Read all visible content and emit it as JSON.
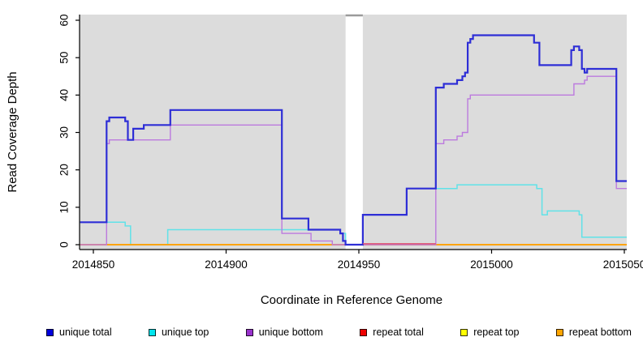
{
  "chart_data": {
    "type": "line",
    "subtype": "step-coverage",
    "title": "",
    "xlabel": "Coordinate in Reference Genome",
    "ylabel": "Read Coverage Depth",
    "xlim": [
      2014845,
      2015051
    ],
    "ylim": [
      0,
      60
    ],
    "x_ticks": [
      2014850,
      2014900,
      2014950,
      2015000,
      2015050
    ],
    "x_tick_labels": [
      "2014850",
      "2014900",
      "2014950",
      "2015000",
      "2015050"
    ],
    "y_ticks": [
      0,
      10,
      20,
      30,
      40,
      50,
      60
    ],
    "y_tick_labels": [
      "0",
      "10",
      "20",
      "30",
      "40",
      "50",
      "60"
    ],
    "grid": false,
    "panel_background": "#dcdcdc",
    "gap_region": {
      "x1": 2014945,
      "x2": 2014951.5,
      "fill": "#ffffff",
      "top_edge_color": "#9a9a9a"
    },
    "legend_position": "bottom",
    "series": [
      {
        "name": "unique total",
        "color": "#2e2ed6",
        "legend_color": "#0000dd",
        "width": 2.2,
        "points": [
          [
            2014845,
            6
          ],
          [
            2014855,
            33
          ],
          [
            2014856,
            34
          ],
          [
            2014862,
            33
          ],
          [
            2014863,
            28
          ],
          [
            2014865,
            31
          ],
          [
            2014869,
            32
          ],
          [
            2014879,
            36
          ],
          [
            2014921,
            7
          ],
          [
            2014931,
            4
          ],
          [
            2014943,
            3
          ],
          [
            2014944,
            1
          ],
          [
            2014945,
            0
          ],
          [
            2014951.5,
            8
          ],
          [
            2014968,
            15
          ],
          [
            2014979,
            42
          ],
          [
            2014982,
            43
          ],
          [
            2014987,
            44
          ],
          [
            2014989,
            45
          ],
          [
            2014990,
            46
          ],
          [
            2014991,
            54
          ],
          [
            2014992,
            55
          ],
          [
            2014993,
            56
          ],
          [
            2015016,
            54
          ],
          [
            2015018,
            48
          ],
          [
            2015030,
            52
          ],
          [
            2015031,
            53
          ],
          [
            2015033,
            52
          ],
          [
            2015034,
            47
          ],
          [
            2015035,
            46
          ],
          [
            2015036,
            47
          ],
          [
            2015047,
            17
          ]
        ]
      },
      {
        "name": "unique top",
        "color": "#60e2e8",
        "legend_color": "#00e5ee",
        "width": 1.5,
        "points": [
          [
            2014845,
            6
          ],
          [
            2014862,
            5
          ],
          [
            2014864,
            0
          ],
          [
            2014878,
            4
          ],
          [
            2014943,
            3
          ],
          [
            2014945,
            0
          ],
          [
            2014951.5,
            8
          ],
          [
            2014968,
            15
          ],
          [
            2014987,
            16
          ],
          [
            2015017,
            15
          ],
          [
            2015019,
            8
          ],
          [
            2015021,
            9
          ],
          [
            2015033,
            8
          ],
          [
            2015034,
            2
          ]
        ]
      },
      {
        "name": "unique bottom",
        "color": "#bc7ade",
        "legend_color": "#9932cc",
        "width": 1.4,
        "points": [
          [
            2014845,
            0
          ],
          [
            2014855,
            27
          ],
          [
            2014856,
            28
          ],
          [
            2014879,
            32
          ],
          [
            2014921,
            3
          ],
          [
            2014932,
            1
          ],
          [
            2014940,
            0
          ],
          [
            2014979,
            27
          ],
          [
            2014982,
            28
          ],
          [
            2014987,
            29
          ],
          [
            2014989,
            30
          ],
          [
            2014991,
            39
          ],
          [
            2014992,
            40
          ],
          [
            2015031,
            43
          ],
          [
            2015035,
            44
          ],
          [
            2015036,
            45
          ],
          [
            2015047,
            15
          ]
        ]
      },
      {
        "name": "repeat total",
        "color": "#e0506a",
        "legend_color": "#ee0000",
        "width": 1.5,
        "points": [
          [
            2014845,
            0
          ]
        ]
      },
      {
        "name": "repeat top",
        "color": "#ffff00",
        "legend_color": "#ffff00",
        "width": 1.5,
        "points": [
          [
            2014845,
            0
          ]
        ]
      },
      {
        "name": "repeat bottom",
        "color": "#ffa500",
        "legend_color": "#ffa500",
        "width": 1.8,
        "points": [
          [
            2014845,
            0
          ]
        ]
      }
    ],
    "zero_line_overdraw": [
      {
        "x1": 2014951.5,
        "x2": 2014979,
        "color": "#e0506a",
        "dy": -1.2,
        "width": 1.4
      }
    ]
  },
  "legend": {
    "items": [
      {
        "label": "unique total"
      },
      {
        "label": "unique top"
      },
      {
        "label": "unique bottom"
      },
      {
        "label": "repeat total"
      },
      {
        "label": "repeat top"
      },
      {
        "label": "repeat bottom"
      }
    ]
  }
}
